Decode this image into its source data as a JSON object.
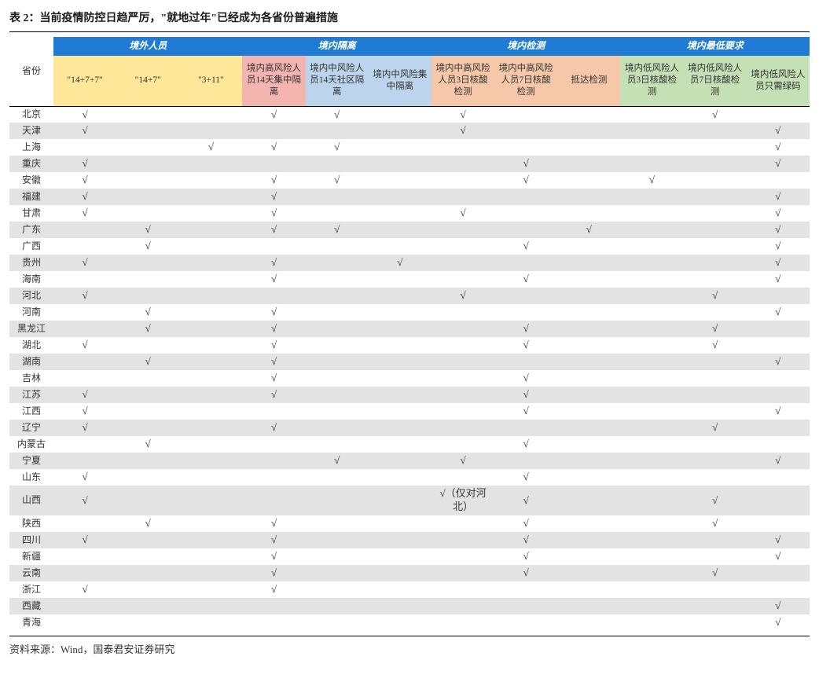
{
  "title": "表 2：当前疫情防控日趋严厉，\"就地过年\"已经成为各省份普遍措施",
  "source": "资料来源：Wind，国泰君安证券研究",
  "checkmark": "√",
  "colors": {
    "group_header_bg": "#1f7bd4",
    "group_header_fg": "#ffffff",
    "sub_yellow": "#ffe79a",
    "sub_pink": "#f4b4b0",
    "sub_blue": "#bcd4ec",
    "sub_salmon": "#f6c7a8",
    "sub_green": "#c4e0b4",
    "row_alt": "#e3e3e3",
    "text": "#333333",
    "border": "#000000"
  },
  "province_header": "省份",
  "groups": [
    {
      "label": "境外人员",
      "span": 3
    },
    {
      "label": "境内隔离",
      "span": 3
    },
    {
      "label": "境内检测",
      "span": 3
    },
    {
      "label": "境内最低要求",
      "span": 3
    }
  ],
  "subcols": [
    {
      "label": "\"14+7+7\"",
      "color": "sub_yellow"
    },
    {
      "label": "\"14+7\"",
      "color": "sub_yellow"
    },
    {
      "label": "\"3+11\"",
      "color": "sub_yellow"
    },
    {
      "label": "境内高风险人员14天集中隔离",
      "color": "sub_pink"
    },
    {
      "label": "境内中风险人员14天社区隔离",
      "color": "sub_blue"
    },
    {
      "label": "境内中风险集中隔离",
      "color": "sub_blue"
    },
    {
      "label": "境内中高风险人员3日核酸检测",
      "color": "sub_salmon"
    },
    {
      "label": "境内中高风险人员7日核酸检测",
      "color": "sub_salmon"
    },
    {
      "label": "抵达检测",
      "color": "sub_salmon"
    },
    {
      "label": "境内低风险人员3日核酸检测",
      "color": "sub_green"
    },
    {
      "label": "境内低风险人员7日核酸检测",
      "color": "sub_green"
    },
    {
      "label": "境内低风险人员只需绿码",
      "color": "sub_green"
    }
  ],
  "rows": [
    {
      "p": "北京",
      "c": [
        "√",
        "",
        "",
        "√",
        "√",
        "",
        "√",
        "",
        "",
        "",
        "√",
        ""
      ]
    },
    {
      "p": "天津",
      "c": [
        "√",
        "",
        "",
        "",
        "",
        "",
        "√",
        "",
        "",
        "",
        "",
        "√"
      ]
    },
    {
      "p": "上海",
      "c": [
        "",
        "",
        "√",
        "√",
        "√",
        "",
        "",
        "",
        "",
        "",
        "",
        "√"
      ]
    },
    {
      "p": "重庆",
      "c": [
        "√",
        "",
        "",
        "",
        "",
        "",
        "",
        "√",
        "",
        "",
        "",
        "√"
      ]
    },
    {
      "p": "安徽",
      "c": [
        "√",
        "",
        "",
        "√",
        "√",
        "",
        "",
        "√",
        "",
        "√",
        "",
        ""
      ]
    },
    {
      "p": "福建",
      "c": [
        "√",
        "",
        "",
        "√",
        "",
        "",
        "",
        "",
        "",
        "",
        "",
        "√"
      ]
    },
    {
      "p": "甘肃",
      "c": [
        "√",
        "",
        "",
        "√",
        "",
        "",
        "√",
        "",
        "",
        "",
        "",
        "√"
      ]
    },
    {
      "p": "广东",
      "c": [
        "",
        "√",
        "",
        "√",
        "√",
        "",
        "",
        "",
        "√",
        "",
        "",
        "√"
      ]
    },
    {
      "p": "广西",
      "c": [
        "",
        "√",
        "",
        "",
        "",
        "",
        "",
        "√",
        "",
        "",
        "",
        "√"
      ]
    },
    {
      "p": "贵州",
      "c": [
        "√",
        "",
        "",
        "√",
        "",
        "√",
        "",
        "",
        "",
        "",
        "",
        "√"
      ]
    },
    {
      "p": "海南",
      "c": [
        "",
        "",
        "",
        "√",
        "",
        "",
        "",
        "√",
        "",
        "",
        "",
        "√"
      ]
    },
    {
      "p": "河北",
      "c": [
        "√",
        "",
        "",
        "",
        "",
        "",
        "√",
        "",
        "",
        "",
        "√",
        ""
      ]
    },
    {
      "p": "河南",
      "c": [
        "",
        "√",
        "",
        "√",
        "",
        "",
        "",
        "",
        "",
        "",
        "",
        "√"
      ]
    },
    {
      "p": "黑龙江",
      "c": [
        "",
        "√",
        "",
        "√",
        "",
        "",
        "",
        "√",
        "",
        "",
        "√",
        ""
      ]
    },
    {
      "p": "湖北",
      "c": [
        "√",
        "",
        "",
        "√",
        "",
        "",
        "",
        "√",
        "",
        "",
        "√",
        ""
      ]
    },
    {
      "p": "湖南",
      "c": [
        "",
        "√",
        "",
        "√",
        "",
        "",
        "",
        "",
        "",
        "",
        "",
        "√"
      ]
    },
    {
      "p": "吉林",
      "c": [
        "",
        "",
        "",
        "√",
        "",
        "",
        "",
        "√",
        "",
        "",
        "",
        ""
      ]
    },
    {
      "p": "江苏",
      "c": [
        "√",
        "",
        "",
        "√",
        "",
        "",
        "",
        "√",
        "",
        "",
        "",
        ""
      ]
    },
    {
      "p": "江西",
      "c": [
        "√",
        "",
        "",
        "",
        "",
        "",
        "",
        "√",
        "",
        "",
        "",
        "√"
      ]
    },
    {
      "p": "辽宁",
      "c": [
        "√",
        "",
        "",
        "√",
        "",
        "",
        "",
        "",
        "",
        "",
        "√",
        ""
      ]
    },
    {
      "p": "内蒙古",
      "c": [
        "",
        "√",
        "",
        "",
        "",
        "",
        "",
        "√",
        "",
        "",
        "",
        ""
      ]
    },
    {
      "p": "宁夏",
      "c": [
        "",
        "",
        "",
        "",
        "√",
        "",
        "√",
        "",
        "",
        "",
        "",
        "√"
      ]
    },
    {
      "p": "山东",
      "c": [
        "√",
        "",
        "",
        "",
        "",
        "",
        "",
        "√",
        "",
        "",
        "",
        ""
      ]
    },
    {
      "p": "山西",
      "c": [
        "√",
        "",
        "",
        "",
        "",
        "",
        "√（仅对河北）",
        "√",
        "",
        "",
        "√",
        ""
      ]
    },
    {
      "p": "陕西",
      "c": [
        "",
        "√",
        "",
        "√",
        "",
        "",
        "",
        "√",
        "",
        "",
        "√",
        ""
      ]
    },
    {
      "p": "四川",
      "c": [
        "√",
        "",
        "",
        "√",
        "",
        "",
        "",
        "√",
        "",
        "",
        "",
        "√"
      ]
    },
    {
      "p": "新疆",
      "c": [
        "",
        "",
        "",
        "√",
        "",
        "",
        "",
        "√",
        "",
        "",
        "",
        "√"
      ]
    },
    {
      "p": "云南",
      "c": [
        "",
        "",
        "",
        "√",
        "",
        "",
        "",
        "√",
        "",
        "",
        "√",
        ""
      ]
    },
    {
      "p": "浙江",
      "c": [
        "√",
        "",
        "",
        "√",
        "",
        "",
        "",
        "",
        "",
        "",
        "",
        ""
      ]
    },
    {
      "p": "西藏",
      "c": [
        "",
        "",
        "",
        "",
        "",
        "",
        "",
        "",
        "",
        "",
        "",
        "√"
      ]
    },
    {
      "p": "青海",
      "c": [
        "",
        "",
        "",
        "",
        "",
        "",
        "",
        "",
        "",
        "",
        "",
        "√"
      ]
    }
  ]
}
